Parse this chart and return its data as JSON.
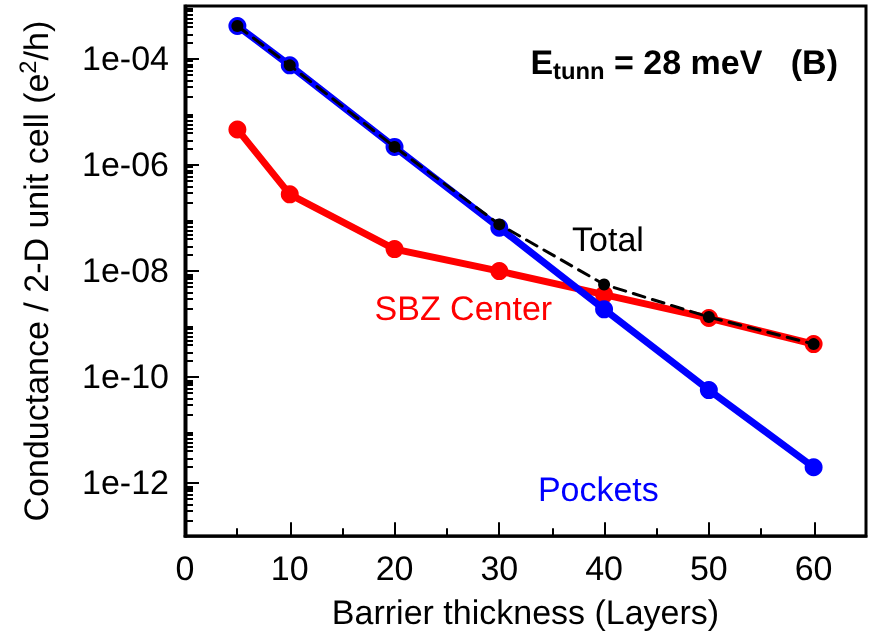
{
  "chart_data": {
    "type": "line",
    "xlabel": "Barrier thickness (Layers)",
    "ylabel": "Conductance / 2-D unit cell (e$^{2}$/h)",
    "annotations": [
      "E$_{tunn}$ = 28 meV   (B)"
    ],
    "x": [
      5,
      10,
      20,
      30,
      40,
      50,
      60
    ],
    "series": [
      {
        "name": "SBZ Center",
        "color": "#ff0000",
        "values": [
          4.7e-06,
          2.8e-07,
          2.6e-08,
          1e-08,
          3.6e-09,
          1.3e-09,
          4.2e-10
        ],
        "line_style": "solid"
      },
      {
        "name": "Pockets",
        "color": "#0000ff",
        "values": [
          0.00042,
          7.6e-05,
          2.2e-06,
          6.6e-08,
          1.9e-09,
          5.7e-11,
          2e-12
        ],
        "line_style": "solid"
      },
      {
        "name": "Total",
        "color": "#000000",
        "values": [
          0.00042,
          7.6e-05,
          2.2e-06,
          7.6e-08,
          5.6e-09,
          1.36e-09,
          4.2e-10
        ],
        "line_style": "dashed"
      }
    ],
    "log": "y",
    "xlim": [
      0,
      65
    ],
    "xticks": [
      0,
      10,
      20,
      30,
      40,
      50,
      60
    ],
    "ylim": [
      1e-13,
      0.001
    ],
    "yticks": [
      {
        "value": 1e-12,
        "label": "1e-12"
      },
      {
        "value": 1e-10,
        "label": "1e-10"
      },
      {
        "value": 1e-08,
        "label": "1e-08"
      },
      {
        "value": 1e-06,
        "label": "1e-06"
      },
      {
        "value": 0.0001,
        "label": "1e-04"
      }
    ],
    "grid": false,
    "legend": false,
    "marker": "circle"
  }
}
